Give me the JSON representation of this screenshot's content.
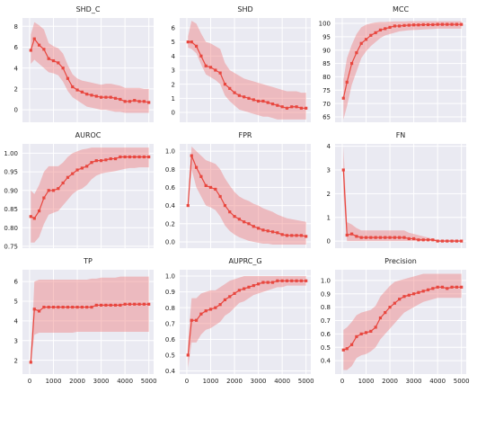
{
  "figure": {
    "background": "#ffffff"
  },
  "style": {
    "panel_bg": "#eaeaf2",
    "grid": "#ffffff",
    "line": "#e8473f",
    "band": "#f08080",
    "band_opacity": 0.45,
    "tick_text": "#222222"
  },
  "chart_data": [
    {
      "type": "line",
      "title": "SHD_C",
      "grid": true,
      "x": [
        50,
        200,
        400,
        600,
        800,
        1000,
        1200,
        1400,
        1600,
        1800,
        2000,
        2200,
        2400,
        2600,
        2800,
        3000,
        3200,
        3400,
        3600,
        3800,
        4000,
        4200,
        4400,
        4600,
        4800,
        5000
      ],
      "mean": [
        5.7,
        6.8,
        6.2,
        5.8,
        4.9,
        4.7,
        4.5,
        4.0,
        3.0,
        2.2,
        1.9,
        1.7,
        1.5,
        1.4,
        1.3,
        1.2,
        1.2,
        1.2,
        1.1,
        1.0,
        0.8,
        0.8,
        0.9,
        0.8,
        0.8,
        0.7
      ],
      "lower": [
        4.4,
        4.8,
        4.4,
        4.0,
        3.6,
        3.5,
        3.3,
        2.7,
        1.8,
        1.2,
        0.9,
        0.6,
        0.3,
        0.2,
        0.1,
        0.0,
        0.0,
        -0.1,
        -0.2,
        -0.2,
        -0.3,
        -0.3,
        -0.3,
        -0.3,
        -0.3,
        -0.3
      ],
      "upper": [
        7.2,
        8.4,
        8.1,
        7.7,
        6.4,
        6.1,
        5.9,
        5.4,
        4.3,
        3.4,
        3.0,
        2.8,
        2.7,
        2.6,
        2.5,
        2.4,
        2.5,
        2.5,
        2.4,
        2.3,
        2.1,
        2.1,
        2.1,
        2.1,
        2.0,
        2.0
      ],
      "xlim": [
        -300,
        5200
      ],
      "ylim": [
        -1.2,
        8.8
      ],
      "xticks": [],
      "yticks": [
        0,
        2,
        4,
        6,
        8
      ]
    },
    {
      "type": "line",
      "title": "SHD",
      "grid": true,
      "x": [
        50,
        200,
        400,
        600,
        800,
        1000,
        1200,
        1400,
        1600,
        1800,
        2000,
        2200,
        2400,
        2600,
        2800,
        3000,
        3200,
        3400,
        3600,
        3800,
        4000,
        4200,
        4400,
        4600,
        4800,
        5000
      ],
      "mean": [
        5.0,
        5.0,
        4.7,
        4.0,
        3.3,
        3.2,
        3.0,
        2.8,
        2.0,
        1.7,
        1.4,
        1.2,
        1.1,
        1.0,
        0.9,
        0.8,
        0.8,
        0.7,
        0.6,
        0.5,
        0.4,
        0.3,
        0.4,
        0.4,
        0.3,
        0.3
      ],
      "lower": [
        4.6,
        4.5,
        4.2,
        3.4,
        2.7,
        2.5,
        2.3,
        2.0,
        1.2,
        0.8,
        0.5,
        0.2,
        0.1,
        0.0,
        -0.1,
        -0.2,
        -0.3,
        -0.3,
        -0.4,
        -0.5,
        -0.5,
        -0.5,
        -0.5,
        -0.5,
        -0.5,
        -0.5
      ],
      "upper": [
        5.4,
        6.5,
        6.3,
        5.6,
        5.0,
        4.9,
        4.7,
        4.5,
        3.5,
        3.0,
        2.8,
        2.6,
        2.4,
        2.3,
        2.2,
        2.1,
        2.0,
        1.9,
        1.8,
        1.7,
        1.6,
        1.5,
        1.5,
        1.5,
        1.4,
        1.4
      ],
      "xlim": [
        -300,
        5200
      ],
      "ylim": [
        -0.7,
        6.7
      ],
      "xticks": [],
      "yticks": [
        0,
        1,
        2,
        3,
        4,
        5,
        6
      ]
    },
    {
      "type": "line",
      "title": "MCC",
      "grid": true,
      "x": [
        50,
        200,
        400,
        600,
        800,
        1000,
        1200,
        1400,
        1600,
        1800,
        2000,
        2200,
        2400,
        2600,
        2800,
        3000,
        3200,
        3400,
        3600,
        3800,
        4000,
        4200,
        4400,
        4600,
        4800,
        5000
      ],
      "mean": [
        72,
        78,
        85,
        89,
        92.5,
        94,
        95.5,
        96.5,
        97.5,
        98,
        98.5,
        99,
        99,
        99.2,
        99.3,
        99.4,
        99.4,
        99.5,
        99.5,
        99.5,
        99.6,
        99.6,
        99.6,
        99.6,
        99.6,
        99.6
      ],
      "lower": [
        64,
        69,
        77,
        82,
        87,
        89.5,
        91.5,
        93,
        94.5,
        95.5,
        96,
        96.5,
        97,
        97.2,
        97.4,
        97.5,
        97.6,
        97.7,
        97.8,
        97.9,
        98,
        98,
        98,
        98,
        98,
        98
      ],
      "upper": [
        79,
        87,
        92,
        96,
        98.5,
        99.5,
        100,
        100.3,
        100.5,
        100.5,
        100.6,
        100.7,
        100.7,
        100.7,
        100.8,
        100.8,
        100.8,
        100.8,
        100.8,
        100.8,
        100.8,
        100.8,
        100.8,
        100.8,
        100.8,
        100.8
      ],
      "xlim": [
        -300,
        5200
      ],
      "ylim": [
        63,
        102
      ],
      "xticks": [],
      "yticks": [
        65,
        70,
        75,
        80,
        85,
        90,
        95,
        100
      ]
    },
    {
      "type": "line",
      "title": "AUROC",
      "grid": true,
      "x": [
        50,
        200,
        400,
        600,
        800,
        1000,
        1200,
        1400,
        1600,
        1800,
        2000,
        2200,
        2400,
        2600,
        2800,
        3000,
        3200,
        3400,
        3600,
        3800,
        4000,
        4200,
        4400,
        4600,
        4800,
        5000
      ],
      "mean": [
        0.83,
        0.825,
        0.845,
        0.88,
        0.9,
        0.9,
        0.905,
        0.92,
        0.935,
        0.945,
        0.955,
        0.96,
        0.965,
        0.975,
        0.98,
        0.98,
        0.982,
        0.985,
        0.985,
        0.99,
        0.99,
        0.99,
        0.99,
        0.99,
        0.99,
        0.99
      ],
      "lower": [
        0.76,
        0.76,
        0.775,
        0.81,
        0.835,
        0.84,
        0.845,
        0.86,
        0.875,
        0.89,
        0.9,
        0.905,
        0.915,
        0.93,
        0.94,
        0.945,
        0.948,
        0.95,
        0.952,
        0.955,
        0.958,
        0.96,
        0.96,
        0.962,
        0.962,
        0.962
      ],
      "upper": [
        0.9,
        0.89,
        0.915,
        0.95,
        0.965,
        0.965,
        0.965,
        0.975,
        0.99,
        1.0,
        1.005,
        1.01,
        1.012,
        1.015,
        1.015,
        1.015,
        1.015,
        1.015,
        1.015,
        1.015,
        1.015,
        1.015,
        1.015,
        1.015,
        1.015,
        1.015
      ],
      "xlim": [
        -300,
        5200
      ],
      "ylim": [
        0.745,
        1.025
      ],
      "xticks": [],
      "yticks": [
        0.75,
        0.8,
        0.85,
        0.9,
        0.95,
        1.0
      ],
      "ytick_labels": [
        "0.75",
        "0.80",
        "0.85",
        "0.90",
        "0.95",
        "1.00"
      ]
    },
    {
      "type": "line",
      "title": "FPR",
      "grid": true,
      "x": [
        50,
        200,
        400,
        600,
        800,
        1000,
        1200,
        1400,
        1600,
        1800,
        2000,
        2200,
        2400,
        2600,
        2800,
        3000,
        3200,
        3400,
        3600,
        3800,
        4000,
        4200,
        4400,
        4600,
        4800,
        5000
      ],
      "mean": [
        0.4,
        0.95,
        0.82,
        0.72,
        0.62,
        0.6,
        0.58,
        0.5,
        0.4,
        0.33,
        0.28,
        0.25,
        0.22,
        0.2,
        0.17,
        0.15,
        0.13,
        0.12,
        0.11,
        0.1,
        0.08,
        0.07,
        0.07,
        0.07,
        0.07,
        0.06
      ],
      "lower": [
        0.38,
        0.8,
        0.6,
        0.5,
        0.4,
        0.38,
        0.35,
        0.28,
        0.18,
        0.12,
        0.08,
        0.05,
        0.03,
        0.01,
        0.0,
        -0.01,
        -0.02,
        -0.02,
        -0.03,
        -0.03,
        -0.03,
        -0.03,
        -0.03,
        -0.03,
        -0.03,
        -0.03
      ],
      "upper": [
        0.42,
        1.05,
        1.0,
        0.95,
        0.9,
        0.88,
        0.86,
        0.8,
        0.7,
        0.62,
        0.55,
        0.5,
        0.47,
        0.45,
        0.42,
        0.4,
        0.37,
        0.35,
        0.33,
        0.3,
        0.28,
        0.26,
        0.25,
        0.24,
        0.23,
        0.22
      ],
      "xlim": [
        -300,
        5200
      ],
      "ylim": [
        -0.07,
        1.08
      ],
      "xticks": [],
      "yticks": [
        0.0,
        0.2,
        0.4,
        0.6,
        0.8,
        1.0
      ],
      "ytick_labels": [
        "0.0",
        "0.2",
        "0.4",
        "0.6",
        "0.8",
        "1.0"
      ]
    },
    {
      "type": "line",
      "title": "FN",
      "grid": true,
      "x": [
        50,
        200,
        400,
        600,
        800,
        1000,
        1200,
        1400,
        1600,
        1800,
        2000,
        2200,
        2400,
        2600,
        2800,
        3000,
        3200,
        3400,
        3600,
        3800,
        4000,
        4200,
        4400,
        4600,
        4800,
        5000
      ],
      "mean": [
        3.0,
        0.25,
        0.3,
        0.2,
        0.15,
        0.15,
        0.15,
        0.15,
        0.15,
        0.15,
        0.15,
        0.15,
        0.15,
        0.15,
        0.1,
        0.1,
        0.05,
        0.05,
        0.05,
        0.05,
        0.0,
        0.0,
        0.0,
        0.0,
        0.0,
        0.0
      ],
      "lower": [
        2.0,
        0.0,
        0.0,
        0.0,
        0.0,
        0.0,
        0.0,
        0.0,
        0.0,
        0.0,
        0.0,
        0.0,
        0.0,
        0.0,
        0.0,
        0.0,
        0.0,
        0.0,
        0.0,
        0.0,
        0.0,
        0.0,
        0.0,
        0.0,
        0.0,
        0.0
      ],
      "upper": [
        4.0,
        0.8,
        0.7,
        0.55,
        0.45,
        0.45,
        0.45,
        0.45,
        0.45,
        0.45,
        0.45,
        0.45,
        0.45,
        0.45,
        0.35,
        0.3,
        0.25,
        0.2,
        0.15,
        0.1,
        0.05,
        0.05,
        0.05,
        0.05,
        0.05,
        0.05
      ],
      "xlim": [
        -300,
        5200
      ],
      "ylim": [
        -0.3,
        4.1
      ],
      "xticks": [],
      "yticks": [
        0,
        1,
        2,
        3,
        4
      ]
    },
    {
      "type": "line",
      "title": "TP",
      "grid": true,
      "x": [
        50,
        200,
        400,
        600,
        800,
        1000,
        1200,
        1400,
        1600,
        1800,
        2000,
        2200,
        2400,
        2600,
        2800,
        3000,
        3200,
        3400,
        3600,
        3800,
        4000,
        4200,
        4400,
        4600,
        4800,
        5000
      ],
      "mean": [
        1.9,
        4.6,
        4.5,
        4.7,
        4.7,
        4.7,
        4.7,
        4.7,
        4.7,
        4.7,
        4.7,
        4.7,
        4.7,
        4.7,
        4.8,
        4.8,
        4.8,
        4.8,
        4.8,
        4.8,
        4.85,
        4.85,
        4.85,
        4.85,
        4.85,
        4.85
      ],
      "lower": [
        1.8,
        3.3,
        3.4,
        3.4,
        3.4,
        3.4,
        3.4,
        3.4,
        3.4,
        3.4,
        3.45,
        3.45,
        3.45,
        3.45,
        3.45,
        3.45,
        3.45,
        3.45,
        3.45,
        3.45,
        3.45,
        3.45,
        3.45,
        3.45,
        3.45,
        3.45
      ],
      "upper": [
        2.0,
        6.0,
        6.1,
        6.1,
        6.1,
        6.1,
        6.1,
        6.1,
        6.1,
        6.1,
        6.1,
        6.1,
        6.1,
        6.15,
        6.15,
        6.2,
        6.2,
        6.2,
        6.2,
        6.25,
        6.25,
        6.25,
        6.25,
        6.25,
        6.25,
        6.25
      ],
      "xlim": [
        -300,
        5200
      ],
      "ylim": [
        1.3,
        6.6
      ],
      "xticks": [
        0,
        1000,
        2000,
        3000,
        4000,
        5000
      ],
      "yticks": [
        2,
        3,
        4,
        5,
        6
      ]
    },
    {
      "type": "line",
      "title": "AUPRC_G",
      "grid": true,
      "x": [
        50,
        200,
        400,
        600,
        800,
        1000,
        1200,
        1400,
        1600,
        1800,
        2000,
        2200,
        2400,
        2600,
        2800,
        3000,
        3200,
        3400,
        3600,
        3800,
        4000,
        4200,
        4400,
        4600,
        4800,
        5000
      ],
      "mean": [
        0.5,
        0.72,
        0.72,
        0.76,
        0.78,
        0.79,
        0.8,
        0.82,
        0.85,
        0.87,
        0.89,
        0.91,
        0.92,
        0.93,
        0.94,
        0.95,
        0.96,
        0.96,
        0.96,
        0.97,
        0.97,
        0.97,
        0.97,
        0.97,
        0.97,
        0.97
      ],
      "lower": [
        0.42,
        0.58,
        0.58,
        0.63,
        0.66,
        0.67,
        0.69,
        0.71,
        0.75,
        0.77,
        0.8,
        0.83,
        0.84,
        0.86,
        0.88,
        0.89,
        0.9,
        0.91,
        0.92,
        0.93,
        0.93,
        0.94,
        0.94,
        0.94,
        0.94,
        0.94
      ],
      "upper": [
        0.58,
        0.86,
        0.86,
        0.89,
        0.9,
        0.91,
        0.91,
        0.93,
        0.95,
        0.97,
        0.98,
        0.99,
        1.0,
        1.0,
        1.0,
        1.0,
        1.0,
        1.0,
        1.0,
        1.0,
        1.0,
        1.0,
        1.0,
        1.0,
        1.0,
        1.0
      ],
      "xlim": [
        -300,
        5200
      ],
      "ylim": [
        0.38,
        1.04
      ],
      "xticks": [
        0,
        1000,
        2000,
        3000,
        4000,
        5000
      ],
      "yticks": [
        0.4,
        0.5,
        0.6,
        0.7,
        0.8,
        0.9,
        1.0
      ],
      "ytick_labels": [
        "0.4",
        "0.5",
        "0.6",
        "0.7",
        "0.8",
        "0.9",
        "1.0"
      ]
    },
    {
      "type": "line",
      "title": "Precision",
      "grid": true,
      "x": [
        50,
        200,
        400,
        600,
        800,
        1000,
        1200,
        1400,
        1600,
        1800,
        2000,
        2200,
        2400,
        2600,
        2800,
        3000,
        3200,
        3400,
        3600,
        3800,
        4000,
        4200,
        4400,
        4600,
        4800,
        5000
      ],
      "mean": [
        0.48,
        0.49,
        0.52,
        0.58,
        0.6,
        0.61,
        0.62,
        0.65,
        0.72,
        0.76,
        0.8,
        0.83,
        0.86,
        0.88,
        0.89,
        0.9,
        0.91,
        0.92,
        0.93,
        0.94,
        0.95,
        0.95,
        0.94,
        0.95,
        0.95,
        0.95
      ],
      "lower": [
        0.33,
        0.33,
        0.36,
        0.42,
        0.44,
        0.45,
        0.47,
        0.5,
        0.56,
        0.6,
        0.64,
        0.68,
        0.72,
        0.76,
        0.78,
        0.8,
        0.82,
        0.84,
        0.85,
        0.86,
        0.87,
        0.87,
        0.87,
        0.87,
        0.87,
        0.87
      ],
      "upper": [
        0.63,
        0.65,
        0.69,
        0.74,
        0.76,
        0.77,
        0.78,
        0.81,
        0.88,
        0.92,
        0.96,
        0.99,
        1.0,
        1.01,
        1.02,
        1.03,
        1.04,
        1.05,
        1.05,
        1.05,
        1.05,
        1.05,
        1.05,
        1.05,
        1.05,
        1.05
      ],
      "xlim": [
        -300,
        5200
      ],
      "ylim": [
        0.3,
        1.08
      ],
      "xticks": [
        0,
        1000,
        2000,
        3000,
        4000,
        5000
      ],
      "yticks": [
        0.4,
        0.5,
        0.6,
        0.7,
        0.8,
        0.9,
        1.0
      ],
      "ytick_labels": [
        "0.4",
        "0.5",
        "0.6",
        "0.7",
        "0.8",
        "0.9",
        "1.0"
      ]
    }
  ]
}
